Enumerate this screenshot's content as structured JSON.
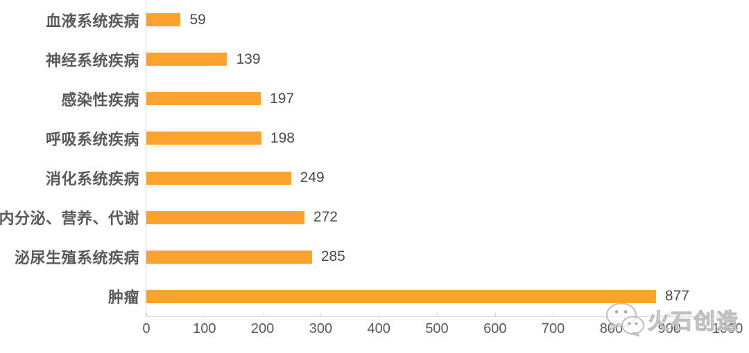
{
  "chart_data": {
    "type": "bar",
    "orientation": "horizontal",
    "title": "",
    "xlabel": "",
    "ylabel": "",
    "grid": false,
    "legend": "none",
    "categories": [
      "血液系统疾病",
      "神经系统疾病",
      "感染性疾病",
      "呼吸系统疾病",
      "消化系统疾病",
      "内分泌、营养、代谢",
      "泌尿生殖系统疾病",
      "肿瘤"
    ],
    "values": [
      59,
      139,
      197,
      198,
      249,
      272,
      285,
      877
    ],
    "xlim": [
      0,
      1000
    ],
    "x_ticks": [
      0,
      100,
      200,
      300,
      400,
      500,
      600,
      700,
      800,
      900,
      1000
    ],
    "bar_color": "#FBA32C",
    "axis_color": "#D9D9D9",
    "category_label_color": "#595959",
    "value_label_color": "#4A4A4A"
  },
  "watermark": {
    "text": "火石创造",
    "icon": "wechat-icon"
  }
}
